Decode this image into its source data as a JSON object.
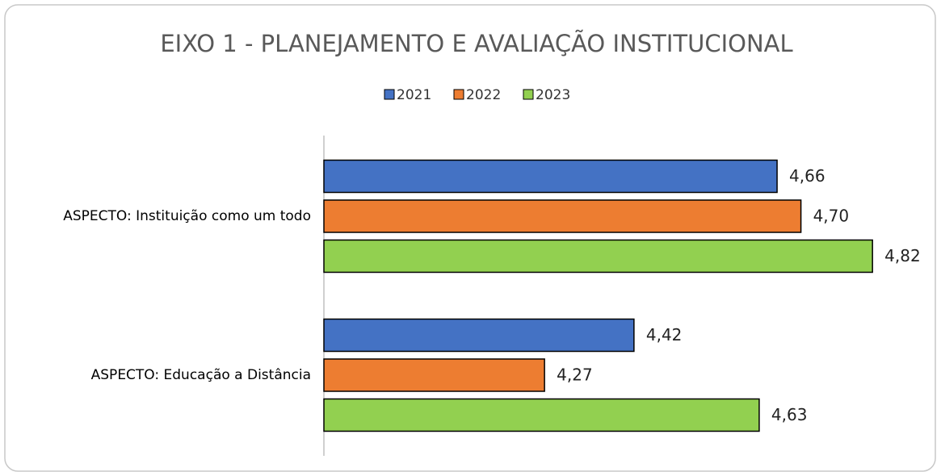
{
  "chart_data": {
    "type": "bar",
    "orientation": "horizontal",
    "title": "EIXO 1 - PLANEJAMENTO E AVALIAÇÃO INSTITUCIONAL",
    "categories": [
      "ASPECTO: Instituição como um todo",
      "ASPECTO: Educação a Distância"
    ],
    "series": [
      {
        "name": "2021",
        "color": "#4472c4",
        "values": [
          4.66,
          4.42
        ],
        "value_labels": [
          "4,66",
          "4,42"
        ]
      },
      {
        "name": "2022",
        "color": "#ed7d31",
        "values": [
          4.7,
          4.27
        ],
        "value_labels": [
          "4,70",
          "4,27"
        ]
      },
      {
        "name": "2023",
        "color": "#92d050",
        "values": [
          4.82,
          4.63
        ],
        "value_labels": [
          "4,82",
          "4,63"
        ]
      }
    ],
    "xlim": [
      3.9,
      4.92
    ],
    "legend": "top"
  }
}
